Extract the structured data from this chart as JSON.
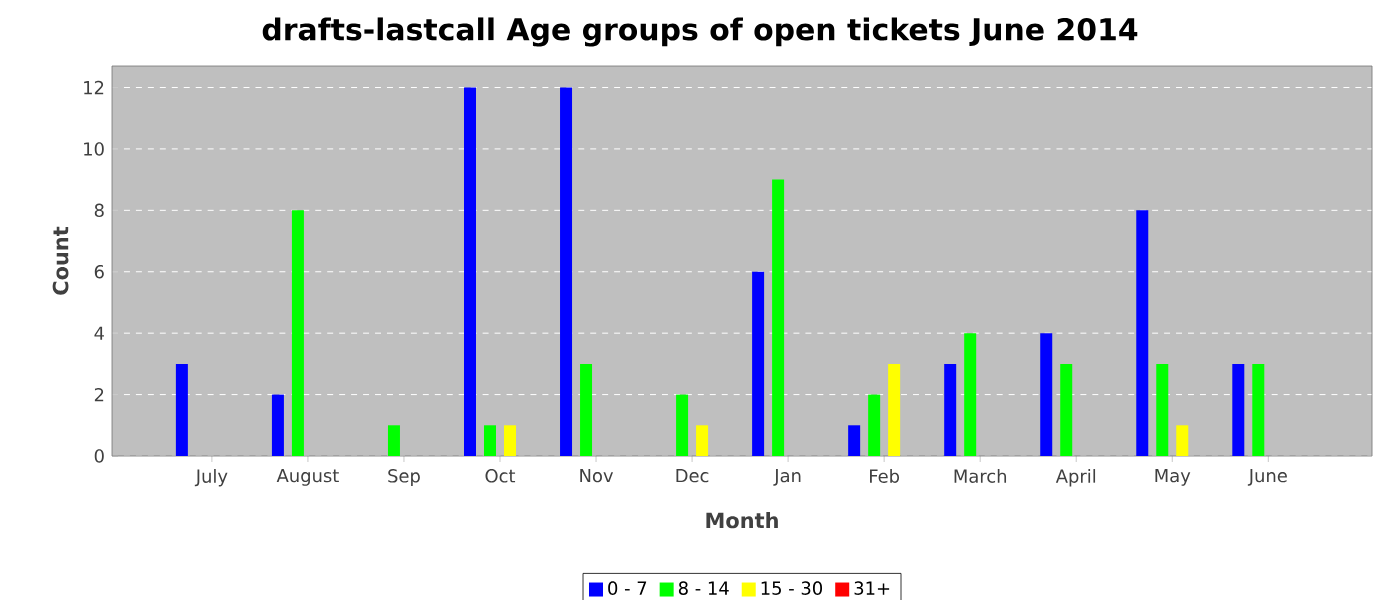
{
  "chart_data": {
    "type": "bar",
    "title": "drafts-lastcall Age groups of open tickets June 2014",
    "xlabel": "Month",
    "ylabel": "Count",
    "categories": [
      "July",
      "August",
      "Sep",
      "Oct",
      "Nov",
      "Dec",
      "Jan",
      "Feb",
      "March",
      "April",
      "May",
      "June"
    ],
    "series": [
      {
        "name": "0 - 7",
        "color": "#0000ff",
        "values": [
          3,
          2,
          0,
          12,
          12,
          0,
          6,
          1,
          3,
          4,
          8,
          3
        ]
      },
      {
        "name": "8 - 14",
        "color": "#00ff00",
        "values": [
          0,
          8,
          1,
          1,
          3,
          2,
          9,
          2,
          4,
          3,
          3,
          3
        ]
      },
      {
        "name": "15 - 30",
        "color": "#ffff00",
        "values": [
          0,
          0,
          0,
          1,
          0,
          1,
          0,
          3,
          0,
          0,
          1,
          0
        ]
      },
      {
        "name": "31+",
        "color": "#ff0000",
        "values": [
          0,
          0,
          0,
          0,
          0,
          0,
          0,
          0,
          0,
          0,
          0,
          0
        ]
      }
    ],
    "ylim": [
      0,
      12.7
    ],
    "yticks": [
      0,
      2,
      4,
      6,
      8,
      10,
      12
    ],
    "grid": "y",
    "legend": "bottom"
  }
}
